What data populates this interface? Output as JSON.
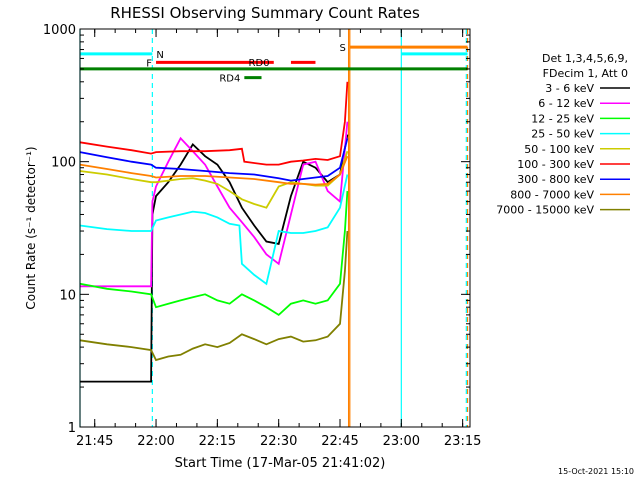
{
  "chart_data": {
    "type": "line",
    "title": "RHESSI Observing Summary Count Rates",
    "xlabel": "Start Time (17-Mar-05 21:41:02)",
    "ylabel": "Count Rate (s⁻¹ detector⁻¹)",
    "y_scale": "log",
    "ylim": [
      1,
      1000
    ],
    "xlim_minutes": [
      21.69,
      23.28
    ],
    "x_ticks": [
      {
        "label": "21:45",
        "hour": 21.75
      },
      {
        "label": "22:00",
        "hour": 22.0
      },
      {
        "label": "22:15",
        "hour": 22.25
      },
      {
        "label": "22:30",
        "hour": 22.5
      },
      {
        "label": "22:45",
        "hour": 22.75
      },
      {
        "label": "23:00",
        "hour": 23.0
      },
      {
        "label": "23:15",
        "hour": 23.25
      }
    ],
    "y_ticks": [
      {
        "label": "1",
        "value": 1
      },
      {
        "label": "10",
        "value": 10
      },
      {
        "label": "100",
        "value": 100
      },
      {
        "label": "1000",
        "value": 1000
      }
    ],
    "legend_header": [
      "Det 1,3,4,5,6,9,",
      "FDecim 1, Att 0"
    ],
    "legend_position": "right",
    "series": [
      {
        "name": "3 - 6 keV",
        "color": "#000000",
        "x": [
          21.69,
          21.98,
          21.985,
          22.0,
          22.05,
          22.1,
          22.15,
          22.2,
          22.25,
          22.3,
          22.35,
          22.4,
          22.45,
          22.5,
          22.55,
          22.6,
          22.65,
          22.7,
          22.75,
          22.78
        ],
        "y": [
          2.2,
          2.2,
          40,
          55,
          70,
          95,
          135,
          110,
          95,
          70,
          45,
          33,
          25,
          24,
          55,
          100,
          90,
          70,
          80,
          160
        ]
      },
      {
        "name": "6 - 12 keV",
        "color": "#ff00ff",
        "x": [
          21.69,
          21.98,
          21.985,
          22.0,
          22.05,
          22.1,
          22.15,
          22.2,
          22.25,
          22.3,
          22.35,
          22.4,
          22.45,
          22.5,
          22.55,
          22.6,
          22.65,
          22.7,
          22.75,
          22.78
        ],
        "y": [
          11.5,
          11.5,
          50,
          65,
          100,
          150,
          120,
          95,
          65,
          45,
          35,
          27,
          20,
          17,
          40,
          95,
          100,
          60,
          50,
          200
        ]
      },
      {
        "name": "12 - 25 keV",
        "color": "#00ff00",
        "x": [
          21.69,
          21.8,
          21.9,
          21.98,
          22.0,
          22.05,
          22.1,
          22.15,
          22.2,
          22.25,
          22.3,
          22.35,
          22.4,
          22.45,
          22.5,
          22.55,
          22.6,
          22.65,
          22.7,
          22.75,
          22.77,
          22.78
        ],
        "y": [
          12,
          11,
          10.5,
          10,
          8,
          8.5,
          9,
          9.5,
          10,
          9,
          8.5,
          10,
          9,
          8,
          7,
          8.5,
          9,
          8.5,
          9,
          12,
          30,
          60
        ]
      },
      {
        "name": "25 - 50 keV",
        "color": "#00ffff",
        "x": [
          21.69,
          21.8,
          21.9,
          21.98,
          22.0,
          22.05,
          22.1,
          22.15,
          22.2,
          22.25,
          22.3,
          22.34,
          22.35,
          22.4,
          22.45,
          22.5,
          22.55,
          22.6,
          22.65,
          22.7,
          22.75,
          22.78
        ],
        "y": [
          33,
          31,
          30,
          30,
          36,
          38,
          40,
          42,
          41,
          38,
          34,
          33,
          17,
          14,
          12,
          30,
          29,
          29,
          30,
          32,
          45,
          80
        ]
      },
      {
        "name": "50 - 100 keV",
        "color": "#cccc00",
        "x": [
          21.69,
          21.8,
          21.9,
          21.98,
          22.0,
          22.05,
          22.1,
          22.15,
          22.2,
          22.25,
          22.3,
          22.35,
          22.4,
          22.45,
          22.5,
          22.55,
          22.6,
          22.65,
          22.7,
          22.75,
          22.78
        ],
        "y": [
          85,
          80,
          74,
          70,
          70,
          72,
          74,
          75,
          72,
          68,
          60,
          52,
          48,
          45,
          65,
          70,
          68,
          66,
          66,
          80,
          120
        ]
      },
      {
        "name": "100 - 300 keV",
        "color": "#ff0000",
        "x": [
          21.69,
          21.8,
          21.9,
          21.98,
          22.0,
          22.1,
          22.2,
          22.3,
          22.35,
          22.36,
          22.45,
          22.5,
          22.55,
          22.6,
          22.65,
          22.7,
          22.75,
          22.77,
          22.78
        ],
        "y": [
          140,
          130,
          122,
          115,
          118,
          120,
          120,
          122,
          125,
          100,
          95,
          95,
          100,
          102,
          105,
          103,
          110,
          200,
          400
        ]
      },
      {
        "name": "300 - 800 keV",
        "color": "#0000ff",
        "x": [
          21.69,
          21.8,
          21.9,
          21.98,
          22.0,
          22.1,
          22.2,
          22.3,
          22.4,
          22.5,
          22.55,
          22.6,
          22.65,
          22.7,
          22.75,
          22.78
        ],
        "y": [
          118,
          108,
          100,
          95,
          90,
          88,
          85,
          82,
          80,
          75,
          72,
          74,
          76,
          78,
          90,
          150
        ]
      },
      {
        "name": "800 - 7000 keV",
        "color": "#ff8000",
        "x": [
          21.69,
          21.8,
          21.9,
          21.98,
          22.0,
          22.1,
          22.2,
          22.3,
          22.4,
          22.5,
          22.55,
          22.6,
          22.65,
          22.7,
          22.75,
          22.78
        ],
        "y": [
          95,
          88,
          82,
          78,
          76,
          78,
          78,
          76,
          74,
          70,
          68,
          68,
          67,
          68,
          80,
          110
        ]
      },
      {
        "name": "7000 - 15000 keV",
        "color": "#808000",
        "x": [
          21.69,
          21.8,
          21.9,
          21.98,
          22.0,
          22.05,
          22.1,
          22.15,
          22.2,
          22.25,
          22.3,
          22.35,
          22.4,
          22.45,
          22.5,
          22.55,
          22.6,
          22.65,
          22.7,
          22.75,
          22.77,
          22.78
        ],
        "y": [
          4.5,
          4.2,
          4.0,
          3.8,
          3.2,
          3.4,
          3.5,
          3.9,
          4.2,
          4.0,
          4.3,
          5.0,
          4.6,
          4.2,
          4.6,
          4.8,
          4.4,
          4.5,
          4.8,
          6,
          15,
          30
        ]
      }
    ],
    "flag_bars": [
      {
        "label": "N",
        "color": "#00ffff",
        "label_color": "#00ffff",
        "label_side": "right",
        "segments": [
          [
            21.69,
            21.985
          ],
          [
            23.0,
            23.27
          ]
        ],
        "value": 650
      },
      {
        "label": "F",
        "color": "#ff0000",
        "label_color": "#ff0000",
        "label_side": "left",
        "segments": [
          [
            22.0,
            22.48
          ],
          [
            22.55,
            22.65
          ]
        ],
        "value": 560
      },
      {
        "label": "S",
        "color": "#ff8000",
        "label_color": "#ff8000",
        "label_side": "left",
        "segments": [
          [
            22.79,
            23.27
          ]
        ],
        "value": 730
      },
      {
        "label": "RD0",
        "color": "#008000",
        "label_color": "#008000",
        "label_side": "above",
        "segments": [
          [
            21.69,
            23.27
          ]
        ],
        "value": 500
      },
      {
        "label": "RD4",
        "color": "#008000",
        "label_color": "#008000",
        "label_side": "left",
        "segments": [
          [
            22.36,
            22.43
          ]
        ],
        "value": 430
      }
    ],
    "vertical_markers": [
      {
        "hour": 21.985,
        "color": "#00ffff",
        "style": "dashed"
      },
      {
        "hour": 22.785,
        "color": "#ff8000",
        "style": "solid"
      },
      {
        "hour": 22.79,
        "color": "#ff8000",
        "style": "solid"
      },
      {
        "hour": 23.0,
        "color": "#00ffff",
        "style": "solid"
      },
      {
        "hour": 23.27,
        "color": "#ff8000",
        "style": "dashed"
      },
      {
        "hour": 23.265,
        "color": "#00ffff",
        "style": "dashed"
      },
      {
        "hour": 21.69,
        "color": "#00ffff",
        "style": "solid"
      }
    ]
  },
  "footer": {
    "timestamp": "15-Oct-2021 15:10"
  }
}
